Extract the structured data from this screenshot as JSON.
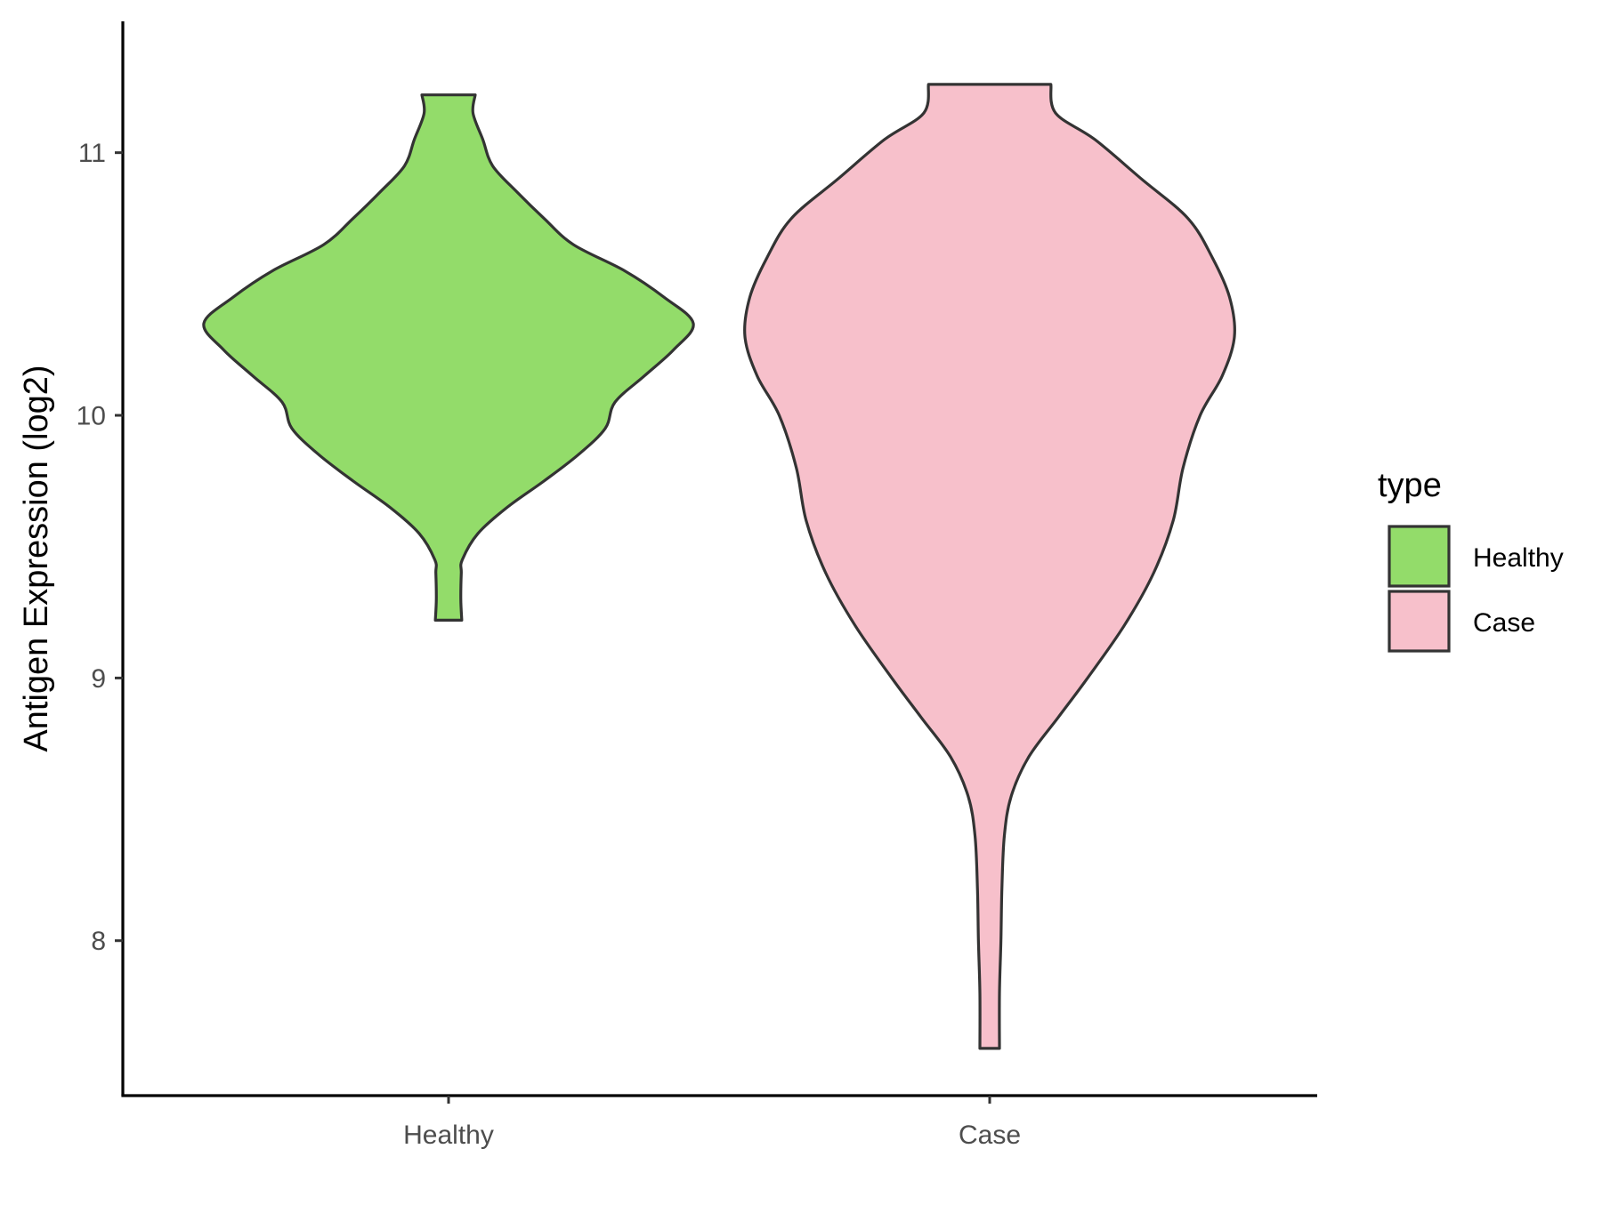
{
  "chart_data": {
    "type": "violin",
    "title": "",
    "xlabel": "",
    "ylabel": "Antigen Expression (log2)",
    "ylim": [
      7.41,
      11.5
    ],
    "yticks": [
      8,
      9,
      10,
      11
    ],
    "categories": [
      "Healthy",
      "Case"
    ],
    "legend": {
      "title": "type",
      "position": "right",
      "items": [
        {
          "label": "Healthy",
          "color": "#93DC6A"
        },
        {
          "label": "Case",
          "color": "#F7C0CB"
        }
      ]
    },
    "grid": false,
    "series": [
      {
        "name": "Healthy",
        "color": "#93DC6A",
        "min": 9.22,
        "max": 11.22,
        "density": [
          [
            9.22,
            0.054
          ],
          [
            9.3,
            0.05
          ],
          [
            9.4,
            0.052
          ],
          [
            9.45,
            0.056
          ],
          [
            9.55,
            0.12
          ],
          [
            9.65,
            0.24
          ],
          [
            9.75,
            0.39
          ],
          [
            9.85,
            0.53
          ],
          [
            9.95,
            0.64
          ],
          [
            10.05,
            0.68
          ],
          [
            10.15,
            0.8
          ],
          [
            10.25,
            0.92
          ],
          [
            10.35,
            1.0
          ],
          [
            10.45,
            0.88
          ],
          [
            10.55,
            0.72
          ],
          [
            10.65,
            0.51
          ],
          [
            10.75,
            0.39
          ],
          [
            10.85,
            0.28
          ],
          [
            10.95,
            0.18
          ],
          [
            11.05,
            0.14
          ],
          [
            11.15,
            0.1
          ],
          [
            11.22,
            0.109
          ]
        ]
      },
      {
        "name": "Case",
        "color": "#F7C0CB",
        "min": 7.59,
        "max": 11.26,
        "density": [
          [
            7.59,
            0.04
          ],
          [
            7.8,
            0.04
          ],
          [
            8.0,
            0.046
          ],
          [
            8.2,
            0.05
          ],
          [
            8.4,
            0.06
          ],
          [
            8.55,
            0.088
          ],
          [
            8.7,
            0.16
          ],
          [
            8.85,
            0.28
          ],
          [
            9.0,
            0.4
          ],
          [
            9.2,
            0.55
          ],
          [
            9.4,
            0.67
          ],
          [
            9.6,
            0.75
          ],
          [
            9.8,
            0.79
          ],
          [
            10.0,
            0.86
          ],
          [
            10.15,
            0.95
          ],
          [
            10.3,
            1.0
          ],
          [
            10.45,
            0.98
          ],
          [
            10.6,
            0.91
          ],
          [
            10.75,
            0.81
          ],
          [
            10.9,
            0.62
          ],
          [
            11.05,
            0.43
          ],
          [
            11.15,
            0.27
          ],
          [
            11.26,
            0.25
          ]
        ]
      }
    ]
  }
}
